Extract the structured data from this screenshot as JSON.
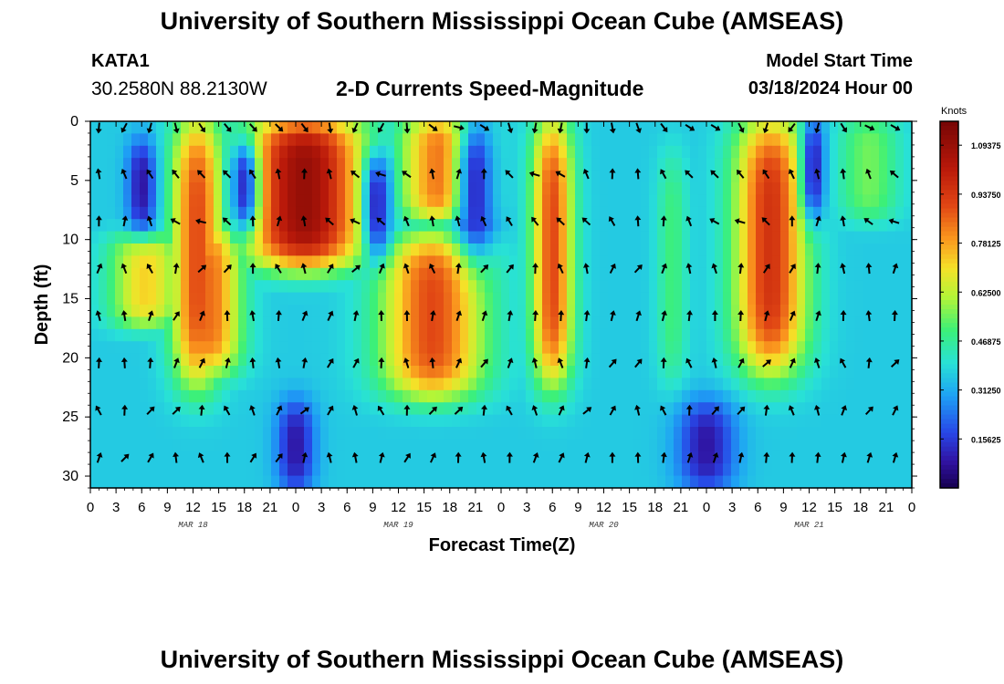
{
  "header": {
    "title": "University of Southern Mississippi Ocean Cube (AMSEAS)",
    "station": "KATA1",
    "coords": "30.2580N  88.2130W",
    "plot_title": "2-D Currents Speed-Magnitude",
    "model_label": "Model Start Time",
    "model_time": "03/18/2024 Hour 00"
  },
  "footer": {
    "title": "University of Southern Mississippi Ocean Cube (AMSEAS)"
  },
  "chart_data": {
    "type": "heatmap",
    "title": "2-D Currents Speed-Magnitude",
    "xlabel": "Forecast Time(Z)",
    "ylabel": "Depth (ft)",
    "x_range_hours": [
      0,
      96
    ],
    "y_range_ft": [
      0,
      31
    ],
    "x_tick_labels": [
      "0",
      "3",
      "6",
      "9",
      "12",
      "15",
      "18",
      "21",
      "0",
      "3",
      "6",
      "9",
      "12",
      "15",
      "18",
      "21",
      "0",
      "3",
      "6",
      "9",
      "12",
      "15",
      "18",
      "21",
      "0",
      "3",
      "6",
      "9",
      "12",
      "15",
      "18",
      "21",
      "0"
    ],
    "y_ticks": [
      0,
      5,
      10,
      15,
      20,
      25,
      30
    ],
    "day_labels": [
      {
        "text": "MAR 18",
        "hour": 12
      },
      {
        "text": "MAR 19",
        "hour": 36
      },
      {
        "text": "MAR 20",
        "hour": 60
      },
      {
        "text": "MAR 21",
        "hour": 84
      }
    ],
    "colorbar": {
      "unit_label": "Knots",
      "min": 0.0,
      "max": 1.17,
      "tick_values": [
        1.09375,
        0.9375,
        0.78125,
        0.625,
        0.46875,
        0.3125,
        0.15625
      ],
      "tick_labels": [
        "1.09375",
        "0.93750",
        "0.78125",
        "0.62500",
        "0.46875",
        "0.31250",
        "0.15625"
      ]
    },
    "arrow_depths_ft": [
      0.5,
      4.5,
      8.5,
      12.5,
      16.5,
      20.5,
      24.5,
      28.5
    ],
    "red_features": [
      {
        "center_hour": 12.5,
        "half_width_hours": 2.5,
        "depth_top_ft": 0,
        "depth_bottom_ft": 22,
        "peak_knots": 0.9
      },
      {
        "center_hour": 14.0,
        "half_width_hours": 3.0,
        "depth_top_ft": 9,
        "depth_bottom_ft": 21,
        "peak_knots": 0.85
      },
      {
        "center_hour": 6.5,
        "half_width_hours": 3.5,
        "depth_top_ft": 10,
        "depth_bottom_ft": 17,
        "peak_knots": 0.72
      },
      {
        "center_hour": 25.0,
        "half_width_hours": 6.0,
        "depth_top_ft": 0,
        "depth_bottom_ft": 12,
        "peak_knots": 1.1
      },
      {
        "center_hour": 41.0,
        "half_width_hours": 4.0,
        "depth_top_ft": 0,
        "depth_bottom_ft": 8,
        "peak_knots": 0.85
      },
      {
        "center_hour": 40.0,
        "half_width_hours": 5.0,
        "depth_top_ft": 10,
        "depth_bottom_ft": 23,
        "peak_knots": 0.9
      },
      {
        "center_hour": 54.0,
        "half_width_hours": 2.0,
        "depth_top_ft": 0,
        "depth_bottom_ft": 22,
        "peak_knots": 0.9
      },
      {
        "center_hour": 79.5,
        "half_width_hours": 3.5,
        "depth_top_ft": 0,
        "depth_bottom_ft": 21,
        "peak_knots": 0.95
      },
      {
        "center_hour": 91.0,
        "half_width_hours": 3.0,
        "depth_top_ft": 0,
        "depth_bottom_ft": 8,
        "peak_knots": 0.55
      },
      {
        "center_hour": 68.0,
        "half_width_hours": 1.5,
        "depth_top_ft": 3,
        "depth_bottom_ft": 22,
        "peak_knots": 0.5
      }
    ],
    "blue_features": [
      {
        "center_hour": 6.0,
        "half_width_hours": 1.5,
        "depth_top_ft": 2,
        "depth_bottom_ft": 9
      },
      {
        "center_hour": 18.0,
        "half_width_hours": 1.5,
        "depth_top_ft": 2,
        "depth_bottom_ft": 9
      },
      {
        "center_hour": 33.5,
        "half_width_hours": 1.5,
        "depth_top_ft": 3,
        "depth_bottom_ft": 11
      },
      {
        "center_hour": 45.0,
        "half_width_hours": 2.0,
        "depth_top_ft": 0,
        "depth_bottom_ft": 11
      },
      {
        "center_hour": 84.5,
        "half_width_hours": 1.2,
        "depth_top_ft": 0,
        "depth_bottom_ft": 8
      },
      {
        "center_hour": 72.0,
        "half_width_hours": 3.0,
        "depth_top_ft": 24,
        "depth_bottom_ft": 31
      },
      {
        "center_hour": 24.0,
        "half_width_hours": 2.0,
        "depth_top_ft": 24,
        "depth_bottom_ft": 31
      }
    ]
  }
}
